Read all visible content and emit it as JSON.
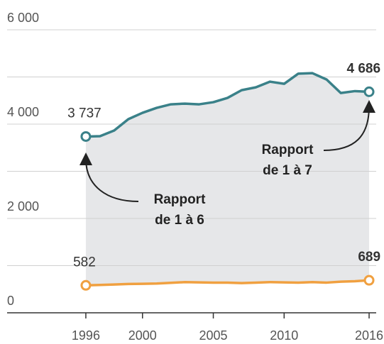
{
  "chart_data": {
    "type": "line",
    "x": [
      1996,
      1997,
      1998,
      1999,
      2000,
      2001,
      2002,
      2003,
      2004,
      2005,
      2006,
      2007,
      2008,
      2009,
      2010,
      2011,
      2012,
      2013,
      2014,
      2015,
      2016
    ],
    "series": [
      {
        "name": null,
        "color": "#3a8189",
        "values": [
          3737,
          3745,
          3865,
          4105,
          4240,
          4345,
          4420,
          4435,
          4420,
          4465,
          4555,
          4720,
          4780,
          4900,
          4855,
          5070,
          5080,
          4945,
          4660,
          4700,
          4686
        ],
        "value_labels": [
          "3 737",
          null,
          null,
          null,
          null,
          null,
          null,
          null,
          null,
          null,
          null,
          null,
          null,
          null,
          null,
          null,
          null,
          null,
          null,
          null,
          "4 686"
        ]
      },
      {
        "name": null,
        "color": "#f0a040",
        "values": [
          582,
          590,
          600,
          610,
          615,
          620,
          635,
          650,
          645,
          640,
          640,
          630,
          640,
          650,
          645,
          640,
          650,
          640,
          660,
          670,
          689
        ],
        "value_labels": [
          "582",
          null,
          null,
          null,
          null,
          null,
          null,
          null,
          null,
          null,
          null,
          null,
          null,
          null,
          null,
          null,
          null,
          null,
          null,
          null,
          "689"
        ]
      }
    ],
    "xlim": [
      1994.5,
      2016.5
    ],
    "xticks": [
      1996,
      2000,
      2005,
      2010,
      2016
    ],
    "ylim": [
      0,
      6000
    ],
    "yticks": [
      {
        "value": 0,
        "label": "0"
      },
      {
        "value": 2000,
        "label": "2 000"
      },
      {
        "value": 4000,
        "label": "4 000"
      },
      {
        "value": 6000,
        "label": "6 000"
      }
    ],
    "minor_yticks": [
      1000,
      3000,
      5000
    ],
    "grid": true,
    "fill_between": true,
    "annotations": [
      {
        "lines": [
          "Rapport",
          "de 1 à 6"
        ]
      },
      {
        "lines": [
          "Rapport",
          "de 1 à 7"
        ]
      }
    ]
  }
}
